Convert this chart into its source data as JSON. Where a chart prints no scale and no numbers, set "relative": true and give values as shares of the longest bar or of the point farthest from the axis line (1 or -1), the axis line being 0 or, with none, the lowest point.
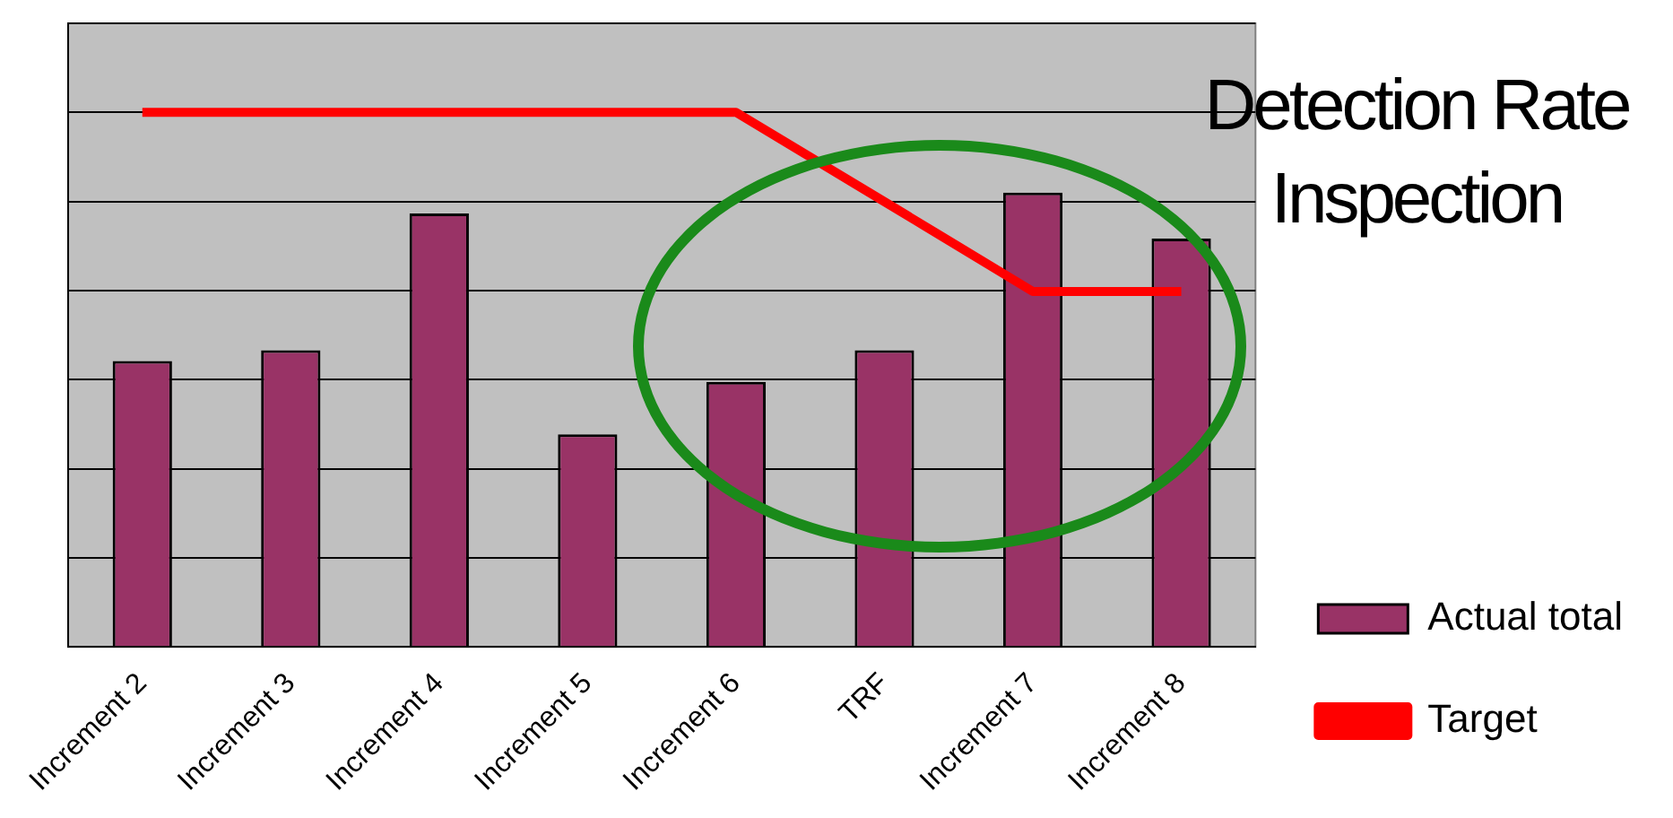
{
  "chart_data": {
    "type": "bar",
    "title": "Detection Rate Inspection",
    "relative": true,
    "categories": [
      "Increment 2",
      "Increment 3",
      "Increment 4",
      "Increment 5",
      "Increment 6",
      "TRF",
      "Increment 7",
      "Increment 8"
    ],
    "series": [
      {
        "name": "Actual total",
        "color": "#993366",
        "values": [
          0.535,
          0.555,
          0.811,
          0.398,
          0.496,
          0.555,
          0.85,
          0.764
        ]
      },
      {
        "name": "Target",
        "type": "line",
        "color": "#ff0000",
        "values": [
          1,
          1,
          1,
          1,
          1,
          0.833,
          0.665,
          0.665
        ]
      }
    ],
    "grid": "y",
    "legend": "bottom right",
    "marker": "none",
    "line_style": "solid"
  }
}
